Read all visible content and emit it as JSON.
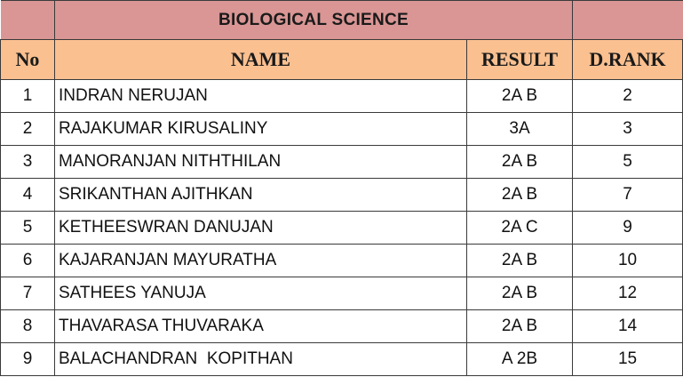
{
  "title": "BIOLOGICAL SCIENCE",
  "columns": {
    "no": "No",
    "name": "NAME",
    "result": "RESULT",
    "rank": "D.RANK"
  },
  "rows": [
    {
      "no": "1",
      "name": "INDRAN NERUJAN",
      "result": "2A B",
      "rank": "2"
    },
    {
      "no": "2",
      "name": "RAJAKUMAR KIRUSALINY",
      "result": "3A",
      "rank": "3"
    },
    {
      "no": "3",
      "name": "MANORANJAN NITHTHILAN",
      "result": "2A B",
      "rank": "5"
    },
    {
      "no": "4",
      "name": "SRIKANTHAN AJITHKAN",
      "result": "2A B",
      "rank": "7"
    },
    {
      "no": "5",
      "name": "KETHEESWRAN DANUJAN",
      "result": "2A C",
      "rank": "9"
    },
    {
      "no": "6",
      "name": "KAJARANJAN MAYURATHA",
      "result": "2A B",
      "rank": "10"
    },
    {
      "no": "7",
      "name": "SATHEES YANUJA",
      "result": "2A B",
      "rank": "12"
    },
    {
      "no": "8",
      "name": "THAVARASA THUVARAKA",
      "result": "2A B",
      "rank": "14"
    },
    {
      "no": "9",
      "name": "BALACHANDRAN  KOPITHAN",
      "result": "A 2B",
      "rank": "15"
    }
  ],
  "colors": {
    "title_bg": "#d99694",
    "header_bg": "#fac090",
    "border": "#3a3a3a"
  }
}
